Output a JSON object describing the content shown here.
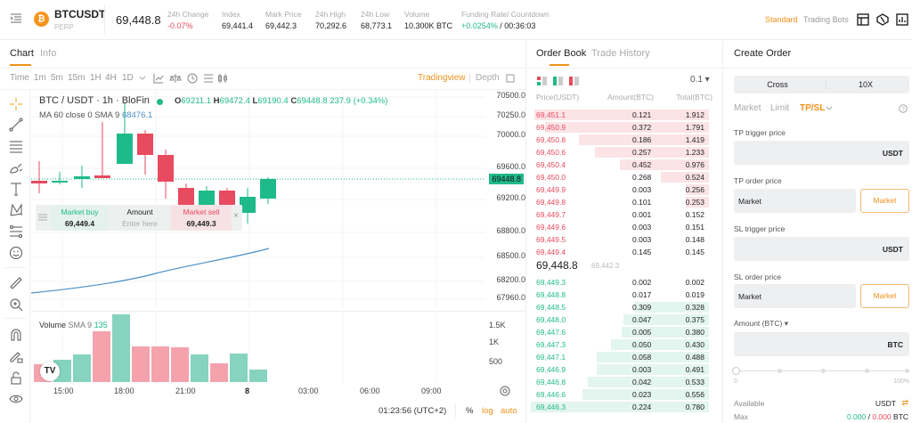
{
  "header": {
    "symbol": "BTCUSDT",
    "symbol_type": "PERP",
    "last_price": "69,448.8",
    "stats": [
      {
        "label": "24h Change",
        "value": "-0.07%",
        "color": "red"
      },
      {
        "label": "Index",
        "value": "69,441.4"
      },
      {
        "label": "Mark Price",
        "value": "69,442.3"
      },
      {
        "label": "24h High",
        "value": "70,292.6"
      },
      {
        "label": "24h Low",
        "value": "68,773.1"
      },
      {
        "label": "Volume",
        "value": "10.300K BTC"
      }
    ],
    "funding": {
      "label": "Funding Rate/ Countdown",
      "rate": "+0.0254%",
      "countdown": " / 00:36:03"
    },
    "modes": {
      "standard": "Standard",
      "bots": "Trading Bots"
    }
  },
  "chart_panel": {
    "tabs": [
      "Chart",
      "Info"
    ],
    "intervals": [
      "Time",
      "1m",
      "5m",
      "15m",
      "1H",
      "4H",
      "1D"
    ],
    "active_interval": "1H",
    "view_modes": {
      "tradingview": "Tradingview",
      "depth": "Depth"
    },
    "legend": {
      "title": "BTC / USDT · 1h · BloFin",
      "o_label": "O",
      "o": "69211.1",
      "h_label": "H",
      "h": "69472.4",
      "l_label": "L",
      "l": "69190.4",
      "c_label": "C",
      "c": "69448.8",
      "change": "237.9 (+0.34%)",
      "ma": "MA 60 close 0 SMA 9",
      "ma_value": "68476.1"
    },
    "quick_trade": {
      "buy_label": "Market buy",
      "buy_price": "69,449.4",
      "amount_label": "Amount",
      "amount_placeholder": "Enter here",
      "sell_label": "Market sell",
      "sell_price": "69,449.3"
    },
    "price_axis": [
      "70500.0",
      "70250.0",
      "70000.0",
      "69600.0",
      "69200.0",
      "68800.0",
      "68500.0",
      "68200.0",
      "67960.0"
    ],
    "current_price_tag": "69448.8",
    "volume_legend": {
      "label": "Volume",
      "sma": "SMA 9",
      "value": "135"
    },
    "volume_axis": [
      "1.5K",
      "1K",
      "500"
    ],
    "time_axis": [
      "15:00",
      "18:00",
      "21:00",
      "8",
      "03:00",
      "06:00",
      "09:00"
    ],
    "footer": {
      "time": "01:23:56 (UTC+2)",
      "percent": "%",
      "log": "log",
      "auto": "auto"
    }
  },
  "order_book": {
    "tabs": [
      "Order Book",
      "Trade History"
    ],
    "precision": "0.1",
    "columns": [
      "Price(USDT)",
      "Amount(BTC)",
      "Total(BTC)"
    ],
    "asks": [
      {
        "price": "69,451.1",
        "amount": "0.121",
        "total": "1.912",
        "depth": 98
      },
      {
        "price": "69,450.9",
        "amount": "0.372",
        "total": "1.791",
        "depth": 92
      },
      {
        "price": "69,450.8",
        "amount": "0.186",
        "total": "1.419",
        "depth": 73
      },
      {
        "price": "69,450.6",
        "amount": "0.257",
        "total": "1.233",
        "depth": 64
      },
      {
        "price": "69,450.4",
        "amount": "0.452",
        "total": "0.976",
        "depth": 50
      },
      {
        "price": "69,450.0",
        "amount": "0.268",
        "total": "0.524",
        "depth": 27
      },
      {
        "price": "69,449.9",
        "amount": "0.003",
        "total": "0.256",
        "depth": 13
      },
      {
        "price": "69,449.8",
        "amount": "0.101",
        "total": "0.253",
        "depth": 13
      },
      {
        "price": "69,449.7",
        "amount": "0.001",
        "total": "0.152",
        "depth": 0
      },
      {
        "price": "69,449.6",
        "amount": "0.003",
        "total": "0.151",
        "depth": 0
      },
      {
        "price": "69,449.5",
        "amount": "0.003",
        "total": "0.148",
        "depth": 0
      },
      {
        "price": "69,449.4",
        "amount": "0.145",
        "total": "0.145",
        "depth": 0
      }
    ],
    "mid_price": "69,448.8",
    "mark_price": "69,442.3",
    "bids": [
      {
        "price": "69,449.3",
        "amount": "0.002",
        "total": "0.002",
        "depth": 0
      },
      {
        "price": "69,448.8",
        "amount": "0.017",
        "total": "0.019",
        "depth": 0
      },
      {
        "price": "69,448.5",
        "amount": "0.309",
        "total": "0.328",
        "depth": 42
      },
      {
        "price": "69,448.0",
        "amount": "0.047",
        "total": "0.375",
        "depth": 48
      },
      {
        "price": "69,447.6",
        "amount": "0.005",
        "total": "0.380",
        "depth": 49
      },
      {
        "price": "69,447.3",
        "amount": "0.050",
        "total": "0.430",
        "depth": 55
      },
      {
        "price": "69,447.1",
        "amount": "0.058",
        "total": "0.488",
        "depth": 63
      },
      {
        "price": "69,446.9",
        "amount": "0.003",
        "total": "0.491",
        "depth": 63
      },
      {
        "price": "69,446.8",
        "amount": "0.042",
        "total": "0.533",
        "depth": 68
      },
      {
        "price": "69,446.6",
        "amount": "0.023",
        "total": "0.556",
        "depth": 71
      },
      {
        "price": "69,446.3",
        "amount": "0.224",
        "total": "0.780",
        "depth": 100
      }
    ]
  },
  "create_order": {
    "title": "Create Order",
    "margin_mode": "Cross",
    "leverage": "10X",
    "order_types": [
      "Market",
      "Limit",
      "TP/SL"
    ],
    "active_type": "TP/SL",
    "tp_trigger_label": "TP trigger price",
    "tp_trigger_unit": "USDT",
    "tp_order_label": "TP order price",
    "tp_order_value": "Market",
    "tp_market_btn": "Market",
    "sl_trigger_label": "SL trigger price",
    "sl_trigger_unit": "USDT",
    "sl_order_label": "SL order price",
    "sl_order_value": "Market",
    "sl_market_btn": "Market",
    "amount_label": "Amount (BTC)",
    "amount_unit": "BTC",
    "slider_min": "0",
    "slider_max": "100%",
    "available_label": "Available",
    "available_value": "USDT",
    "max_label": "Max",
    "max_buy": "0.000",
    "max_sep": " / ",
    "max_sell": "0.000",
    "max_unit": " BTC"
  },
  "colors": {
    "up": "#1fba8a",
    "down": "#e84a5f",
    "accent": "#f0911b",
    "ma": "#4a90c8"
  }
}
